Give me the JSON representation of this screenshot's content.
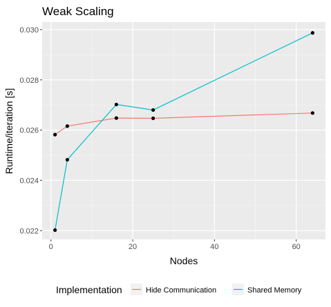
{
  "chart_data": {
    "type": "line",
    "title": "Weak Scaling",
    "xlabel": "Nodes",
    "ylabel": "Runtime/iteration [s]",
    "xlim": [
      -2.15,
      67.15
    ],
    "ylim": [
      0.02165,
      0.0303
    ],
    "x_ticks": [
      0,
      20,
      40,
      60
    ],
    "y_ticks": [
      0.022,
      0.024,
      0.026,
      0.028,
      0.03
    ],
    "x_tick_labels": [
      "0",
      "20",
      "40",
      "60"
    ],
    "y_tick_labels": [
      "0.022",
      "0.024",
      "0.026",
      "0.028",
      "0.030"
    ],
    "grid": true,
    "legend_position": "bottom",
    "legend_title": "Implementation",
    "series": [
      {
        "name": "Hide Communication",
        "color": "#F8766D",
        "x": [
          1,
          4,
          16,
          25,
          64
        ],
        "y": [
          0.02582,
          0.02616,
          0.02648,
          0.02647,
          0.02668
        ]
      },
      {
        "name": "Shared Memory",
        "color": "#00BFC4",
        "x": [
          1,
          4,
          16,
          25,
          64
        ],
        "y": [
          0.02202,
          0.02482,
          0.02702,
          0.0268,
          0.02987
        ]
      }
    ]
  }
}
